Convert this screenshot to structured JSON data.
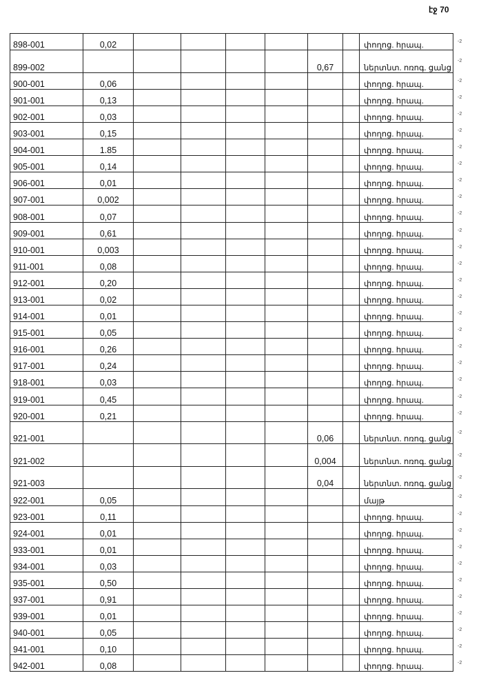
{
  "page_label": "էջ 70",
  "row_mark": "-2",
  "rows": [
    [
      "898-001",
      "0,02",
      "",
      "փողոց. հրապ."
    ],
    [
      "899-002",
      "",
      "0,67",
      "ներտնտ. ոռոգ. ցանց"
    ],
    [
      "900-001",
      "0,06",
      "",
      "փողոց. հրապ."
    ],
    [
      "901-001",
      "0,13",
      "",
      "փողոց. հրապ."
    ],
    [
      "902-001",
      "0,03",
      "",
      "փողոց. հրապ."
    ],
    [
      "903-001",
      "0,15",
      "",
      "փողոց. հրապ."
    ],
    [
      "904-001",
      "1.85",
      "",
      "փողոց. հրապ."
    ],
    [
      "905-001",
      "0,14",
      "",
      "փողոց. հրապ."
    ],
    [
      "906-001",
      "0,01",
      "",
      "փողոց. հրապ."
    ],
    [
      "907-001",
      "0,002",
      "",
      "փողոց. հրապ."
    ],
    [
      "908-001",
      "0,07",
      "",
      "փողոց. հրապ."
    ],
    [
      "909-001",
      "0,61",
      "",
      "փողոց. հրապ."
    ],
    [
      "910-001",
      "0,003",
      "",
      "փողոց. հրապ."
    ],
    [
      "911-001",
      "0,08",
      "",
      "փողոց. հրապ."
    ],
    [
      "912-001",
      "0,20",
      "",
      "փողոց. հրապ."
    ],
    [
      "913-001",
      "0,02",
      "",
      "փողոց. հրապ."
    ],
    [
      "914-001",
      "0,01",
      "",
      "փողոց. հրապ."
    ],
    [
      "915-001",
      "0,05",
      "",
      "փողոց. հրապ."
    ],
    [
      "916-001",
      "0,26",
      "",
      "փողոց. հրապ."
    ],
    [
      "917-001",
      "0,24",
      "",
      "փողոց. հրապ."
    ],
    [
      "918-001",
      "0,03",
      "",
      "փողոց. հրապ."
    ],
    [
      "919-001",
      "0,45",
      "",
      "փողոց. հրապ."
    ],
    [
      "920-001",
      "0,21",
      "",
      "փողոց. հրապ."
    ],
    [
      "921-001",
      "",
      "0,06",
      "ներտնտ. ոռոգ. ցանց"
    ],
    [
      "921-002",
      "",
      "0,004",
      "ներտնտ. ոռոգ. ցանց"
    ],
    [
      "921-003",
      "",
      "0,04",
      "ներտնտ. ոռոգ. ցանց"
    ],
    [
      "922-001",
      "0,05",
      "",
      "մայթ"
    ],
    [
      "923-001",
      "0,11",
      "",
      "փողոց. հրապ."
    ],
    [
      "924-001",
      "0,01",
      "",
      "փողոց. հրապ."
    ],
    [
      "933-001",
      "0,01",
      "",
      "փողոց. հրապ."
    ],
    [
      "934-001",
      "0,03",
      "",
      "փողոց. հրապ."
    ],
    [
      "935-001",
      "0,50",
      "",
      "փողոց. հրապ."
    ],
    [
      "937-001",
      "0,91",
      "",
      "փողոց. հրապ."
    ],
    [
      "939-001",
      "0,01",
      "",
      "փողոց. հրապ."
    ],
    [
      "940-001",
      "0,05",
      "",
      "փողոց. հրապ."
    ],
    [
      "941-001",
      "0,10",
      "",
      "փողոց. հրապ."
    ],
    [
      "942-001",
      "0,08",
      "",
      "փողոց. հրապ."
    ]
  ]
}
